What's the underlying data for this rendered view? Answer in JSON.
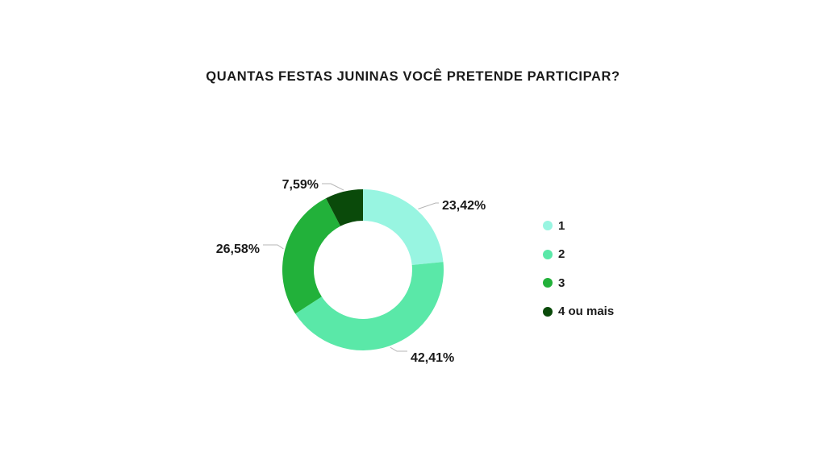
{
  "chart_data": {
    "type": "pie",
    "title": "QUANTAS FESTAS JUNINAS VOCÊ PRETENDE PARTICIPAR?",
    "categories": [
      "1",
      "2",
      "3",
      "4 ou mais"
    ],
    "values": [
      23.42,
      42.41,
      26.58,
      7.59
    ],
    "data_labels": [
      "23,42%",
      "42,41%",
      "26,58%",
      "7,59%"
    ],
    "colors": [
      "#98f5e1",
      "#5ae8a8",
      "#22b13a",
      "#0a4a0a"
    ],
    "legend_position": "right",
    "donut": true
  }
}
